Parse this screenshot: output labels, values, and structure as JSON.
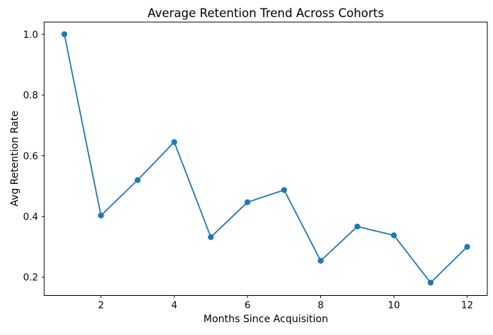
{
  "chart_data": {
    "type": "line",
    "title": "Average Retention Trend Across Cohorts",
    "xlabel": "Months Since Acquisition",
    "ylabel": "Avg Retention Rate",
    "x": [
      1,
      2,
      3,
      4,
      5,
      6,
      7,
      8,
      9,
      10,
      11,
      12
    ],
    "values": [
      1.0,
      0.403,
      0.52,
      0.645,
      0.332,
      0.447,
      0.487,
      0.254,
      0.367,
      0.338,
      0.182,
      0.3
    ],
    "xlim": [
      0.45,
      12.55
    ],
    "ylim": [
      0.14,
      1.04
    ],
    "xticks": [
      2,
      4,
      6,
      8,
      10,
      12
    ],
    "yticks": [
      0.2,
      0.4,
      0.6,
      0.8,
      1.0
    ],
    "grid": false,
    "legend": "none",
    "line_color": "#1f77b4",
    "marker": "circle",
    "marker_color": "#1f77b4",
    "background_color": "#ffffff",
    "axes_color": "#000000"
  }
}
